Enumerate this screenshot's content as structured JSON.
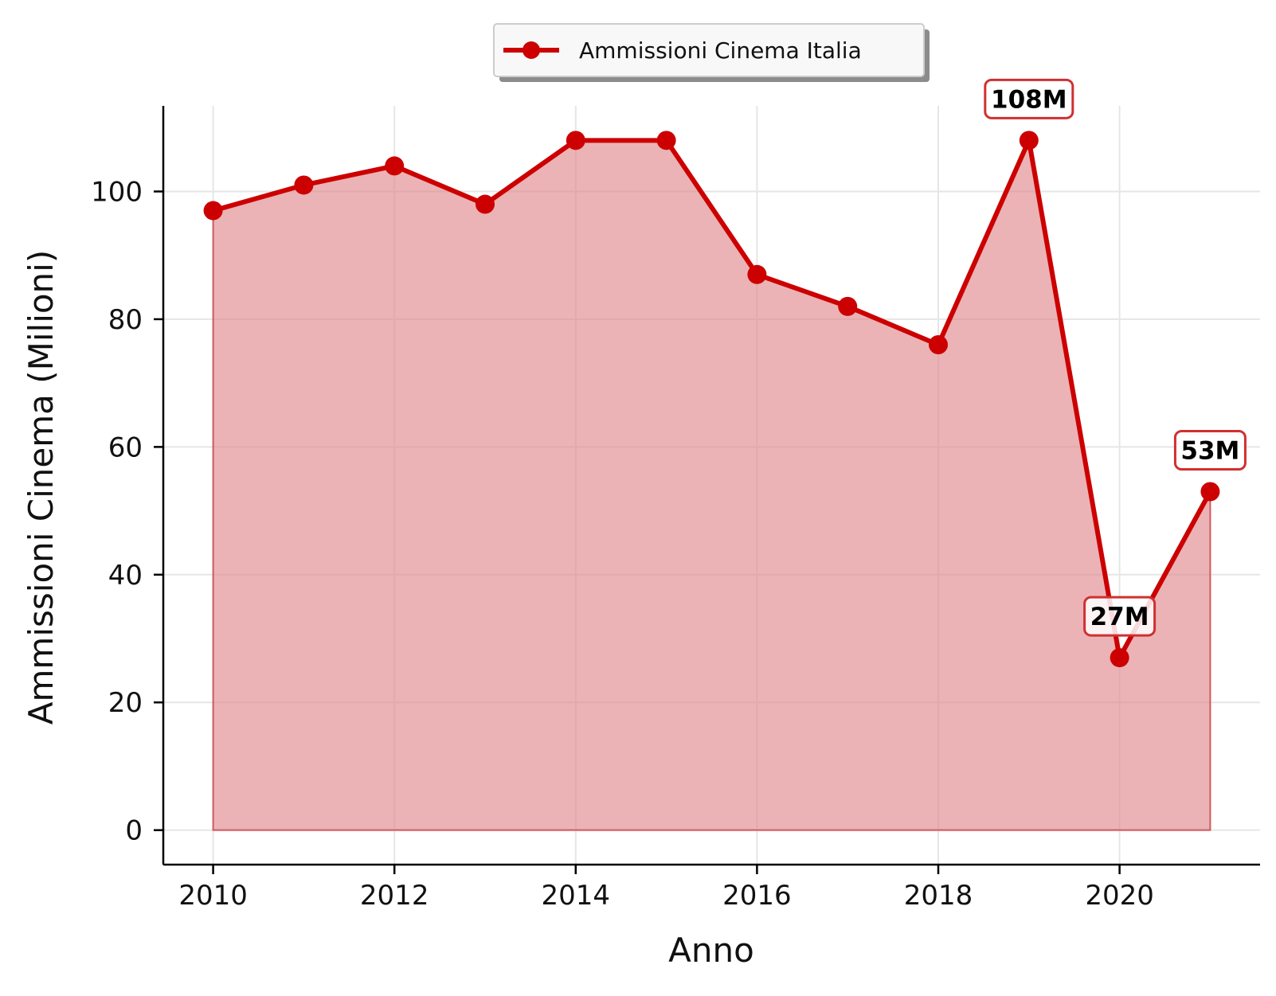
{
  "chart_data": {
    "type": "area",
    "xlabel": "Anno",
    "ylabel": "Ammissioni Cinema (Milioni)",
    "x": [
      2010,
      2011,
      2012,
      2013,
      2014,
      2015,
      2016,
      2017,
      2018,
      2019,
      2020,
      2021
    ],
    "series": [
      {
        "name": "Ammissioni Cinema Italia",
        "values": [
          97,
          101,
          104,
          98,
          108,
          108,
          87,
          82,
          76,
          108,
          27,
          53
        ],
        "color": "#cc0000",
        "fill_color": "#e08a8d"
      }
    ],
    "xlim": [
      2009.45,
      2021.55
    ],
    "ylim": [
      -5.4,
      113.4
    ],
    "xticks": [
      2010,
      2012,
      2014,
      2016,
      2018,
      2020
    ],
    "yticks": [
      0,
      20,
      40,
      60,
      80,
      100
    ],
    "grid": true,
    "legend_position": "top-center",
    "annotations": [
      {
        "x": 2019,
        "y": 108,
        "label": "108M"
      },
      {
        "x": 2020,
        "y": 27,
        "label": "27M"
      },
      {
        "x": 2021,
        "y": 53,
        "label": "53M"
      }
    ]
  }
}
